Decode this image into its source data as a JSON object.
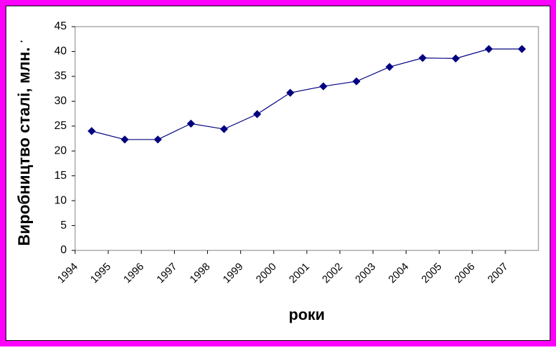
{
  "chart_data": {
    "type": "line",
    "ylabel": "Виробництво сталі, млн. т",
    "xlabel": "роки",
    "categories": [
      "1994",
      "1995",
      "1996",
      "1997",
      "1998",
      "1999",
      "2000",
      "2001",
      "2002",
      "2003",
      "2004",
      "2005",
      "2006",
      "2007"
    ],
    "series": [
      {
        "name": "Виробництво сталі",
        "color": "#000080",
        "values": [
          24,
          22.3,
          22.3,
          25.5,
          24.4,
          27.4,
          31.7,
          33,
          34,
          36.9,
          38.7,
          38.6,
          40.5,
          40.5
        ]
      }
    ],
    "ylim": [
      0,
      45
    ],
    "yticks": [
      0,
      5,
      10,
      15,
      20,
      25,
      30,
      35,
      40,
      45
    ],
    "grid": false
  }
}
